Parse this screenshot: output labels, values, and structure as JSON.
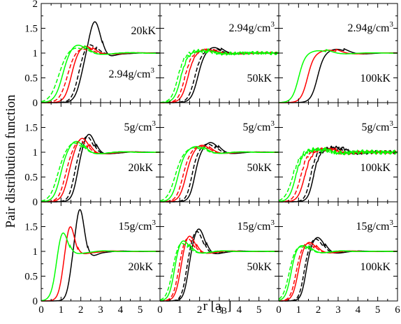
{
  "figure": {
    "ylabel": "Pair distribution function",
    "xlabel_main": "r [a",
    "xlabel_sub": "B",
    "xlabel_close": "]",
    "x_ticks": [
      0,
      1,
      2,
      3,
      4,
      5,
      6
    ],
    "y_ticks": [
      0,
      0.5,
      1,
      1.5,
      2
    ],
    "x_tick_labels": [
      "0",
      "1",
      "2",
      "3",
      "4",
      "5",
      "6"
    ],
    "y_tick_labels": [
      "0",
      "0.5",
      "1",
      "1.5",
      "2"
    ],
    "colors": {
      "black": "#000000",
      "red": "#ff0000",
      "green": "#00ff00"
    }
  },
  "chart_data": [
    {
      "type": "line",
      "row": 0,
      "col": 0,
      "label_temp": "20kK",
      "label_dens": "2.94g/cm",
      "dens_sup": "3",
      "xlim": [
        0,
        6
      ],
      "ylim": [
        0,
        2
      ],
      "series": [
        {
          "color": "black",
          "dashed": false,
          "r0": 2.0,
          "w": 0.3,
          "peak": 1.66,
          "pkpos": 2.7,
          "pkw": 0.4,
          "damp": 1.0,
          "per": 2.4,
          "noise": 0
        },
        {
          "color": "black",
          "dashed": true,
          "r0": 1.85,
          "w": 0.3,
          "peak": 1.2,
          "pkpos": 2.4,
          "pkw": 0.45,
          "damp": 1.2,
          "per": 2.4,
          "noise": 0
        },
        {
          "color": "red",
          "dashed": false,
          "r0": 1.5,
          "w": 0.3,
          "peak": 1.15,
          "pkpos": 2.2,
          "pkw": 0.5,
          "damp": 1.2,
          "per": 2.4,
          "noise": 0
        },
        {
          "color": "red",
          "dashed": true,
          "r0": 1.3,
          "w": 0.35,
          "peak": 1.1,
          "pkpos": 2.0,
          "pkw": 0.55,
          "damp": 1.3,
          "per": 2.4,
          "noise": 0
        },
        {
          "color": "green",
          "dashed": false,
          "r0": 1.05,
          "w": 0.35,
          "peak": 1.18,
          "pkpos": 1.8,
          "pkw": 0.6,
          "damp": 1.3,
          "per": 2.4,
          "noise": 0
        },
        {
          "color": "green",
          "dashed": true,
          "r0": 0.85,
          "w": 0.4,
          "peak": 1.12,
          "pkpos": 1.7,
          "pkw": 0.65,
          "damp": 1.4,
          "per": 2.4,
          "noise": 0
        }
      ]
    },
    {
      "type": "line",
      "row": 0,
      "col": 1,
      "label_temp": "50kK",
      "label_dens": "2.94g/cm",
      "dens_sup": "3",
      "xlim": [
        0,
        6
      ],
      "ylim": [
        0,
        2
      ],
      "series": [
        {
          "color": "black",
          "dashed": false,
          "r0": 1.9,
          "w": 0.3,
          "peak": 1.12,
          "pkpos": 2.7,
          "pkw": 0.5,
          "damp": 1.0,
          "per": 2.4,
          "noise": 0
        },
        {
          "color": "black",
          "dashed": true,
          "r0": 1.75,
          "w": 0.3,
          "peak": 1.08,
          "pkpos": 2.5,
          "pkw": 0.5,
          "damp": 1.0,
          "per": 2.4,
          "noise": 0.01
        },
        {
          "color": "red",
          "dashed": false,
          "r0": 1.4,
          "w": 0.3,
          "peak": 1.08,
          "pkpos": 2.3,
          "pkw": 0.5,
          "damp": 1.0,
          "per": 2.4,
          "noise": 0.01
        },
        {
          "color": "red",
          "dashed": true,
          "r0": 1.25,
          "w": 0.3,
          "peak": 1.06,
          "pkpos": 2.2,
          "pkw": 0.5,
          "damp": 1.0,
          "per": 2.4,
          "noise": 0.02
        },
        {
          "color": "green",
          "dashed": false,
          "r0": 1.05,
          "w": 0.3,
          "peak": 1.05,
          "pkpos": 2.0,
          "pkw": 0.5,
          "damp": 1.0,
          "per": 2.4,
          "noise": 0.03
        },
        {
          "color": "green",
          "dashed": true,
          "r0": 0.9,
          "w": 0.3,
          "peak": 1.04,
          "pkpos": 1.9,
          "pkw": 0.5,
          "damp": 1.0,
          "per": 2.4,
          "noise": 0.03
        }
      ]
    },
    {
      "type": "line",
      "row": 0,
      "col": 2,
      "label_temp": "100kK",
      "label_dens": "2.94g/cm",
      "dens_sup": "3",
      "xlim": [
        0,
        6
      ],
      "ylim": [
        0,
        2
      ],
      "series": [
        {
          "color": "black",
          "dashed": false,
          "r0": 1.95,
          "w": 0.3,
          "peak": 1.08,
          "pkpos": 2.9,
          "pkw": 0.6,
          "damp": 1.0,
          "per": 2.4,
          "noise": 0
        },
        {
          "color": "red",
          "dashed": false,
          "r0": 1.45,
          "w": 0.3,
          "peak": 1.06,
          "pkpos": 2.5,
          "pkw": 0.6,
          "damp": 1.0,
          "per": 2.4,
          "noise": 0
        },
        {
          "color": "green",
          "dashed": false,
          "r0": 1.0,
          "w": 0.3,
          "peak": 1.05,
          "pkpos": 2.0,
          "pkw": 0.6,
          "damp": 1.0,
          "per": 2.4,
          "noise": 0
        }
      ]
    },
    {
      "type": "line",
      "row": 1,
      "col": 0,
      "label_temp": "20kK",
      "label_dens": "5g/cm",
      "dens_sup": "3",
      "xlim": [
        0,
        6
      ],
      "ylim": [
        0,
        2
      ],
      "series": [
        {
          "color": "black",
          "dashed": false,
          "r0": 1.8,
          "w": 0.25,
          "peak": 1.38,
          "pkpos": 2.4,
          "pkw": 0.4,
          "damp": 1.1,
          "per": 2.1,
          "noise": 0
        },
        {
          "color": "black",
          "dashed": true,
          "r0": 1.65,
          "w": 0.25,
          "peak": 1.33,
          "pkpos": 2.3,
          "pkw": 0.4,
          "damp": 1.1,
          "per": 2.1,
          "noise": 0
        },
        {
          "color": "red",
          "dashed": false,
          "r0": 1.35,
          "w": 0.3,
          "peak": 1.3,
          "pkpos": 2.05,
          "pkw": 0.45,
          "damp": 1.2,
          "per": 2.1,
          "noise": 0
        },
        {
          "color": "red",
          "dashed": true,
          "r0": 1.2,
          "w": 0.3,
          "peak": 1.25,
          "pkpos": 1.95,
          "pkw": 0.45,
          "damp": 1.2,
          "per": 2.1,
          "noise": 0
        },
        {
          "color": "green",
          "dashed": false,
          "r0": 0.95,
          "w": 0.3,
          "peak": 1.23,
          "pkpos": 1.75,
          "pkw": 0.5,
          "damp": 1.3,
          "per": 2.1,
          "noise": 0
        },
        {
          "color": "green",
          "dashed": true,
          "r0": 0.8,
          "w": 0.35,
          "peak": 1.2,
          "pkpos": 1.65,
          "pkw": 0.55,
          "damp": 1.3,
          "per": 2.1,
          "noise": 0
        }
      ]
    },
    {
      "type": "line",
      "row": 1,
      "col": 1,
      "label_temp": "50kK",
      "label_dens": "5g/cm",
      "dens_sup": "3",
      "xlim": [
        0,
        6
      ],
      "ylim": [
        0,
        2
      ],
      "series": [
        {
          "color": "black",
          "dashed": false,
          "r0": 1.75,
          "w": 0.25,
          "peak": 1.2,
          "pkpos": 2.55,
          "pkw": 0.5,
          "damp": 1.0,
          "per": 2.1,
          "noise": 0
        },
        {
          "color": "black",
          "dashed": true,
          "r0": 1.6,
          "w": 0.25,
          "peak": 1.17,
          "pkpos": 2.4,
          "pkw": 0.5,
          "damp": 1.0,
          "per": 2.1,
          "noise": 0
        },
        {
          "color": "red",
          "dashed": false,
          "r0": 1.3,
          "w": 0.3,
          "peak": 1.15,
          "pkpos": 2.1,
          "pkw": 0.5,
          "damp": 1.0,
          "per": 2.1,
          "noise": 0
        },
        {
          "color": "red",
          "dashed": true,
          "r0": 1.15,
          "w": 0.3,
          "peak": 1.13,
          "pkpos": 2.0,
          "pkw": 0.5,
          "damp": 1.0,
          "per": 2.1,
          "noise": 0
        },
        {
          "color": "green",
          "dashed": false,
          "r0": 0.9,
          "w": 0.3,
          "peak": 1.12,
          "pkpos": 1.8,
          "pkw": 0.55,
          "damp": 1.1,
          "per": 2.1,
          "noise": 0
        },
        {
          "color": "green",
          "dashed": true,
          "r0": 0.75,
          "w": 0.35,
          "peak": 1.1,
          "pkpos": 1.7,
          "pkw": 0.55,
          "damp": 1.1,
          "per": 2.1,
          "noise": 0
        }
      ]
    },
    {
      "type": "line",
      "row": 1,
      "col": 2,
      "label_temp": "100kK",
      "label_dens": "5g/cm",
      "dens_sup": "3",
      "xlim": [
        0,
        6
      ],
      "ylim": [
        0,
        2
      ],
      "series": [
        {
          "color": "black",
          "dashed": false,
          "r0": 1.75,
          "w": 0.25,
          "peak": 1.1,
          "pkpos": 2.8,
          "pkw": 0.6,
          "damp": 1.0,
          "per": 2.1,
          "noise": 0.03
        },
        {
          "color": "black",
          "dashed": true,
          "r0": 1.6,
          "w": 0.25,
          "peak": 1.08,
          "pkpos": 2.6,
          "pkw": 0.6,
          "damp": 1.0,
          "per": 2.1,
          "noise": 0.03
        },
        {
          "color": "red",
          "dashed": false,
          "r0": 1.3,
          "w": 0.3,
          "peak": 1.07,
          "pkpos": 2.3,
          "pkw": 0.6,
          "damp": 1.0,
          "per": 2.1,
          "noise": 0.03
        },
        {
          "color": "red",
          "dashed": true,
          "r0": 1.1,
          "w": 0.3,
          "peak": 1.06,
          "pkpos": 2.1,
          "pkw": 0.6,
          "damp": 1.0,
          "per": 2.1,
          "noise": 0.03
        },
        {
          "color": "green",
          "dashed": false,
          "r0": 0.85,
          "w": 0.3,
          "peak": 1.06,
          "pkpos": 1.9,
          "pkw": 0.6,
          "damp": 1.0,
          "per": 2.1,
          "noise": 0.04
        },
        {
          "color": "green",
          "dashed": true,
          "r0": 0.7,
          "w": 0.35,
          "peak": 1.05,
          "pkpos": 1.8,
          "pkw": 0.6,
          "damp": 1.0,
          "per": 2.1,
          "noise": 0.04
        }
      ]
    },
    {
      "type": "line",
      "row": 2,
      "col": 0,
      "label_temp": "20kK",
      "label_dens": "15g/cm",
      "dens_sup": "3",
      "xlim": [
        0,
        6
      ],
      "ylim": [
        0,
        2
      ],
      "series": [
        {
          "color": "black",
          "dashed": false,
          "r0": 1.45,
          "w": 0.2,
          "peak": 1.87,
          "pkpos": 1.95,
          "pkw": 0.3,
          "damp": 1.0,
          "per": 1.8,
          "noise": 0
        },
        {
          "color": "red",
          "dashed": false,
          "r0": 1.05,
          "w": 0.22,
          "peak": 1.55,
          "pkpos": 1.45,
          "pkw": 0.3,
          "damp": 1.1,
          "per": 1.8,
          "noise": 0
        },
        {
          "color": "green",
          "dashed": false,
          "r0": 0.7,
          "w": 0.25,
          "peak": 1.46,
          "pkpos": 1.05,
          "pkw": 0.35,
          "damp": 1.2,
          "per": 1.8,
          "noise": 0
        }
      ]
    },
    {
      "type": "line",
      "row": 2,
      "col": 1,
      "label_temp": "50kK",
      "label_dens": "15g/cm",
      "dens_sup": "3",
      "xlim": [
        0,
        6
      ],
      "ylim": [
        0,
        2
      ],
      "series": [
        {
          "color": "black",
          "dashed": false,
          "r0": 1.4,
          "w": 0.22,
          "peak": 1.47,
          "pkpos": 1.95,
          "pkw": 0.4,
          "damp": 1.0,
          "per": 1.8,
          "noise": 0
        },
        {
          "color": "black",
          "dashed": true,
          "r0": 1.3,
          "w": 0.22,
          "peak": 1.42,
          "pkpos": 1.85,
          "pkw": 0.4,
          "damp": 1.0,
          "per": 1.8,
          "noise": 0
        },
        {
          "color": "red",
          "dashed": false,
          "r0": 1.0,
          "w": 0.25,
          "peak": 1.35,
          "pkpos": 1.45,
          "pkw": 0.4,
          "damp": 1.1,
          "per": 1.8,
          "noise": 0
        },
        {
          "color": "red",
          "dashed": true,
          "r0": 0.9,
          "w": 0.25,
          "peak": 1.3,
          "pkpos": 1.35,
          "pkw": 0.4,
          "damp": 1.1,
          "per": 1.8,
          "noise": 0
        },
        {
          "color": "green",
          "dashed": false,
          "r0": 0.7,
          "w": 0.25,
          "peak": 1.26,
          "pkpos": 1.1,
          "pkw": 0.45,
          "damp": 1.2,
          "per": 1.8,
          "noise": 0
        },
        {
          "color": "green",
          "dashed": true,
          "r0": 0.6,
          "w": 0.28,
          "peak": 1.22,
          "pkpos": 1.0,
          "pkw": 0.45,
          "damp": 1.2,
          "per": 1.8,
          "noise": 0
        }
      ]
    },
    {
      "type": "line",
      "row": 2,
      "col": 2,
      "label_temp": "100kK",
      "label_dens": "15g/cm",
      "dens_sup": "3",
      "xlim": [
        0,
        6
      ],
      "ylim": [
        0,
        2
      ],
      "series": [
        {
          "color": "black",
          "dashed": false,
          "r0": 1.35,
          "w": 0.22,
          "peak": 1.29,
          "pkpos": 1.95,
          "pkw": 0.45,
          "damp": 1.0,
          "per": 1.8,
          "noise": 0
        },
        {
          "color": "black",
          "dashed": true,
          "r0": 1.25,
          "w": 0.22,
          "peak": 1.26,
          "pkpos": 1.85,
          "pkw": 0.45,
          "damp": 1.0,
          "per": 1.8,
          "noise": 0
        },
        {
          "color": "red",
          "dashed": false,
          "r0": 0.95,
          "w": 0.25,
          "peak": 1.2,
          "pkpos": 1.5,
          "pkw": 0.45,
          "damp": 1.1,
          "per": 1.8,
          "noise": 0
        },
        {
          "color": "red",
          "dashed": true,
          "r0": 0.85,
          "w": 0.25,
          "peak": 1.18,
          "pkpos": 1.4,
          "pkw": 0.45,
          "damp": 1.1,
          "per": 1.8,
          "noise": 0
        },
        {
          "color": "green",
          "dashed": false,
          "r0": 0.6,
          "w": 0.25,
          "peak": 1.14,
          "pkpos": 1.1,
          "pkw": 0.5,
          "damp": 1.2,
          "per": 1.8,
          "noise": 0
        },
        {
          "color": "green",
          "dashed": true,
          "r0": 0.5,
          "w": 0.28,
          "peak": 1.12,
          "pkpos": 1.0,
          "pkw": 0.5,
          "damp": 1.2,
          "per": 1.8,
          "noise": 0
        }
      ]
    }
  ]
}
